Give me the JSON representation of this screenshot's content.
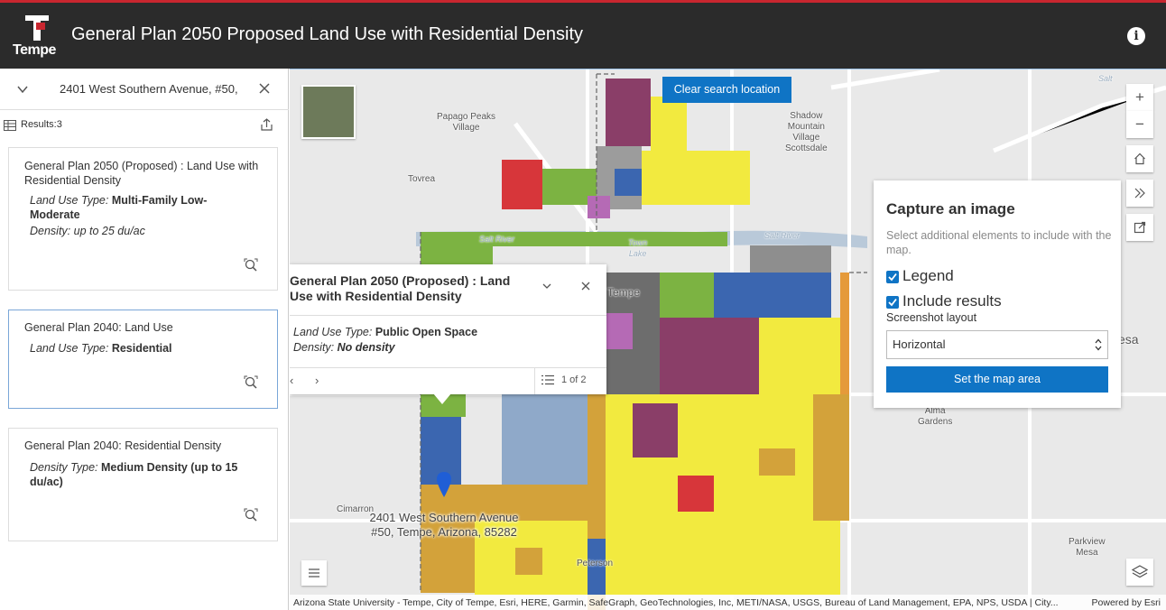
{
  "header": {
    "logo_text": "Tempe",
    "title": "General Plan 2050 Proposed Land Use with Residential Density",
    "info_glyph": "i"
  },
  "sidebar": {
    "search_value": "2401 West Southern Avenue, #50,",
    "results_label": "Results:3",
    "cards": [
      {
        "title": "General Plan 2050 (Proposed) : Land Use with Residential Density",
        "fields": [
          {
            "key": "Land Use Type:",
            "value": "Multi-Family Low-Moderate",
            "value_style": "bold"
          },
          {
            "key": "Density:",
            "value": "up to 25 du/ac",
            "value_style": "italic"
          }
        ]
      },
      {
        "title": "General Plan 2040: Land Use",
        "fields": [
          {
            "key": "Land Use Type:",
            "value": "Residential",
            "value_style": "bold"
          }
        ]
      },
      {
        "title": "General Plan 2040: Residential Density",
        "fields": [
          {
            "key": "Density Type:",
            "value": "Medium Density (up to 15 du/ac)",
            "value_style": "bold"
          }
        ]
      }
    ]
  },
  "map": {
    "clear_button": "Clear search location",
    "labels": {
      "papago": "Papago Peaks\nVillage",
      "shadow": "Shadow\nMountain\nVillage\nScottsdale",
      "tovrea": "Tovrea",
      "salt_river": "Salt River",
      "salt_river_2": "Salt River",
      "town_lake": "Town\nLake",
      "tempe": "Tempe",
      "mesa": "esa",
      "alma": "Alma\nGardens",
      "cimarron": "Cimarron",
      "parkview": "Parkview\nMesa",
      "peterson": "Peterson",
      "salt_top": "Salt"
    },
    "address_label": "2401 West Southern Avenue\n#50, Tempe, Arizona, 85282",
    "attribution": "Arizona State University - Tempe, City of Tempe, Esri, HERE, Garmin, SafeGraph, GeoTechnologies, Inc, METI/NASA, USGS, Bureau of Land Management, EPA, NPS, USDA | City...",
    "powered_by": "Powered by Esri",
    "controls": {
      "zoom_in": "+",
      "zoom_out": "−"
    }
  },
  "popup": {
    "title": "General Plan 2050 (Proposed) : Land Use with Residential Density",
    "fields": [
      {
        "key": "Land Use Type:",
        "value": "Public Open Space",
        "value_style": "bold"
      },
      {
        "key": "Density:",
        "value": "No density",
        "value_style": "italic"
      }
    ],
    "prev": "‹",
    "next": "›",
    "pager": "1 of 2"
  },
  "capture": {
    "title": "Capture an image",
    "description": "Select additional elements to include with the map.",
    "options": [
      {
        "label": "Legend",
        "checked": true
      },
      {
        "label": "Include results",
        "checked": true
      }
    ],
    "layout_label": "Screenshot layout",
    "layout_value": "Horizontal",
    "set_area_button": "Set the map area"
  },
  "colors": {
    "header_bg": "#2b2b2b",
    "accent_red": "#c8262f",
    "primary_blue": "#0f74c5",
    "residential_yellow": "#f2ea3f",
    "commercial_red": "#d7363a",
    "open_space_green": "#7cb342",
    "industrial_purple": "#b56ab5",
    "mixed_blue": "#3b66b0",
    "gray": "#8e8e8e",
    "tan": "#d3a23a",
    "plum": "#8a3e68"
  }
}
